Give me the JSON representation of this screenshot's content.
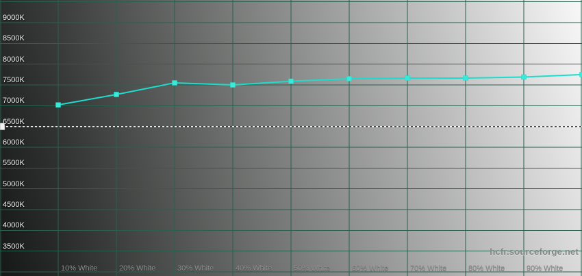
{
  "watermark": {
    "text": "hcfr.sourceforge.net"
  },
  "chart_data": {
    "type": "line",
    "x": [
      10,
      20,
      30,
      40,
      50,
      60,
      70,
      80,
      90,
      100
    ],
    "series": [
      {
        "name": "color-temperature-curve",
        "values": [
          7020,
          7270,
          7550,
          7500,
          7590,
          7650,
          7665,
          7665,
          7690,
          7750
        ],
        "line_color": "#1edccb",
        "marker_color": "#3ae9d9",
        "marker_shape": "square"
      }
    ],
    "x_tick_labels": [
      "10% White",
      "20% White",
      "30% White",
      "40% White",
      "50% White",
      "60% White",
      "70% White",
      "80% White",
      "90% White"
    ],
    "x_tick_values": [
      10,
      20,
      30,
      40,
      50,
      60,
      70,
      80,
      90
    ],
    "y_tick_labels": [
      "9000K",
      "8500K",
      "8000K",
      "7500K",
      "7000K",
      "6500K",
      "6000K",
      "5500K",
      "5000K",
      "4500K",
      "4000K",
      "3500K"
    ],
    "y_tick_values": [
      9000,
      8500,
      8000,
      7500,
      7000,
      6500,
      6000,
      5500,
      5000,
      4500,
      4000,
      3500
    ],
    "reference_line": {
      "value": 6500,
      "style": "dashed",
      "dash_light": "#fafafa",
      "dash_dark": "#3f3f3f"
    },
    "xlim": [
      0,
      100
    ],
    "ylim": [
      2900,
      9545
    ],
    "grid": {
      "on": true,
      "color": "#2b5f4f",
      "x_step": 10,
      "y_step": 500,
      "y_line_min": 3000,
      "y_line_max": 9500
    },
    "legend": "none",
    "background": {
      "left": "#171b19",
      "right": "#f8f8f8",
      "style": "horizontal-gray-ramp"
    }
  }
}
